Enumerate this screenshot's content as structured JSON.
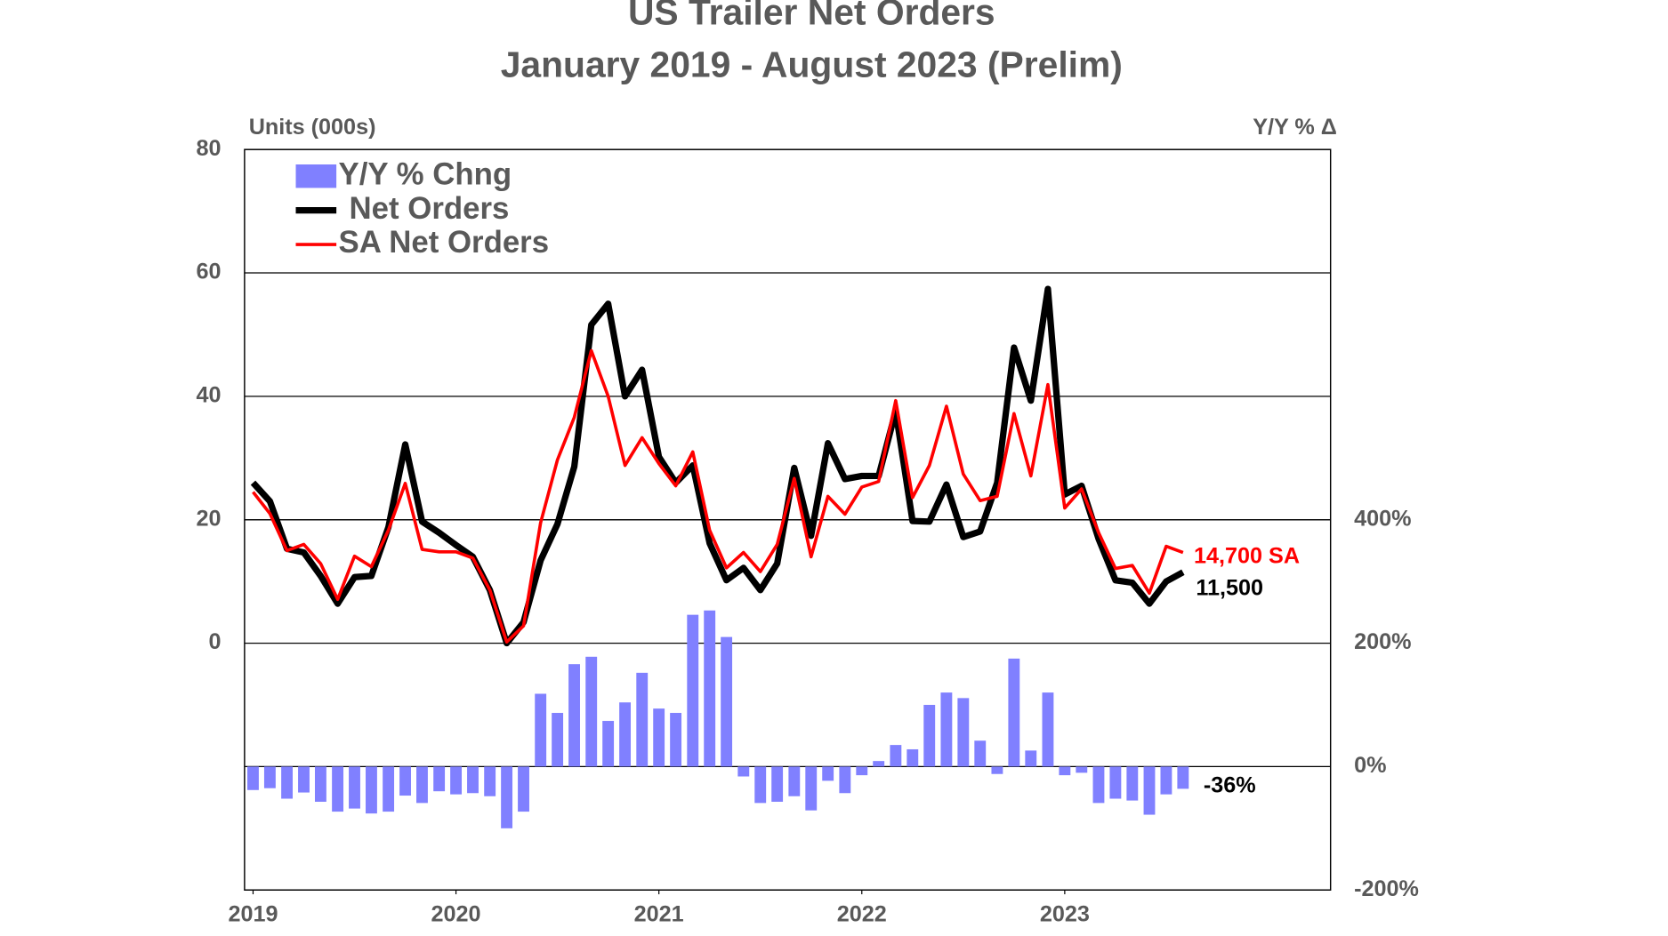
{
  "chart_data": {
    "type": "combo",
    "title": "US Trailer Net Orders",
    "subtitle": "January 2019 - August 2023 (Prelim)",
    "y_label": "Units (000s)",
    "y2_label": "Y/Y % Δ",
    "x": [
      2019,
      2019.083,
      2019.167,
      2019.25,
      2019.333,
      2019.417,
      2019.5,
      2019.583,
      2019.667,
      2019.75,
      2019.833,
      2019.917,
      2020,
      2020.083,
      2020.167,
      2020.25,
      2020.333,
      2020.417,
      2020.5,
      2020.583,
      2020.667,
      2020.75,
      2020.833,
      2020.917,
      2021,
      2021.083,
      2021.167,
      2021.25,
      2021.333,
      2021.417,
      2021.5,
      2021.583,
      2021.667,
      2021.75,
      2021.833,
      2021.917,
      2022,
      2022.083,
      2022.167,
      2022.25,
      2022.333,
      2022.417,
      2022.5,
      2022.583,
      2022.667,
      2022.75,
      2022.833,
      2022.917,
      2023,
      2023.083,
      2023.167,
      2023.25,
      2023.333,
      2023.417,
      2023.5,
      2023.583
    ],
    "xlim": [
      2018.958,
      2024.31
    ],
    "xticks": [
      2019,
      2020,
      2021,
      2022,
      2023
    ],
    "ylim": [
      -40,
      80
    ],
    "yticks": [
      0,
      20,
      40,
      60,
      80
    ],
    "y2lim": [
      -200,
      1000
    ],
    "y2ticks": [
      {
        "value": -200,
        "label": "-200%"
      },
      {
        "value": 0,
        "label": "0%"
      },
      {
        "value": 200,
        "label": "200%"
      },
      {
        "value": 400,
        "label": "400%"
      }
    ],
    "grid": true,
    "legend": "upper left",
    "series": [
      {
        "name": "Y/Y % Chng",
        "type": "bar",
        "axis": "y2",
        "color": "#8080ff",
        "values": [
          -38,
          -35,
          -52,
          -42,
          -57,
          -73,
          -68,
          -76,
          -73,
          -47,
          -59,
          -40,
          -45,
          -43,
          -48,
          -100,
          -73,
          118,
          87,
          166,
          178,
          74,
          104,
          152,
          94,
          87,
          246,
          253,
          210,
          -16,
          -59,
          -57,
          -48,
          -71,
          -23,
          -43,
          -14,
          9,
          35,
          28,
          100,
          120,
          111,
          42,
          -12,
          175,
          26,
          120,
          -14,
          -10,
          -59,
          -52,
          -55,
          -78,
          -45,
          -36
        ]
      },
      {
        "name": "Net Orders",
        "type": "line",
        "color": "#000000",
        "values": [
          26,
          23,
          15.3,
          14.7,
          10.9,
          6.4,
          10.7,
          10.9,
          18.8,
          32.2,
          19.7,
          17.9,
          15.9,
          14,
          8.6,
          0,
          3.4,
          13.4,
          19.3,
          28.6,
          51.6,
          55,
          40,
          44.3,
          30.2,
          26,
          28.8,
          16.2,
          10.2,
          12.2,
          8.6,
          12.9,
          28.4,
          17.4,
          32.4,
          26.6,
          27.1,
          27.1,
          37.6,
          19.8,
          19.7,
          25.7,
          17.2,
          18.1,
          26,
          47.9,
          39.3,
          57.4,
          24.1,
          25.5,
          16.9,
          10.2,
          9.8,
          6.4,
          10,
          11.5
        ]
      },
      {
        "name": "SA Net Orders",
        "type": "line",
        "color": "#ff0000",
        "values": [
          24.5,
          21,
          15,
          16,
          12.9,
          7.1,
          14.1,
          12.4,
          18.3,
          25.9,
          15.2,
          14.8,
          14.8,
          13.8,
          8.6,
          0.2,
          2.8,
          19.5,
          29.7,
          36.6,
          47.4,
          40,
          28.8,
          33.3,
          29.1,
          25.5,
          31,
          18.3,
          12.2,
          14.7,
          11.6,
          16,
          26.7,
          14,
          23.8,
          20.9,
          25.3,
          26.2,
          39.3,
          23.6,
          28.8,
          38.4,
          27.4,
          23.1,
          23.8,
          37.2,
          27.1,
          41.9,
          21.9,
          25,
          17.9,
          12.1,
          12.6,
          8.1,
          15.7,
          14.7
        ]
      }
    ],
    "annotations": [
      "14,700 SA",
      "11,500",
      "-36%"
    ]
  }
}
